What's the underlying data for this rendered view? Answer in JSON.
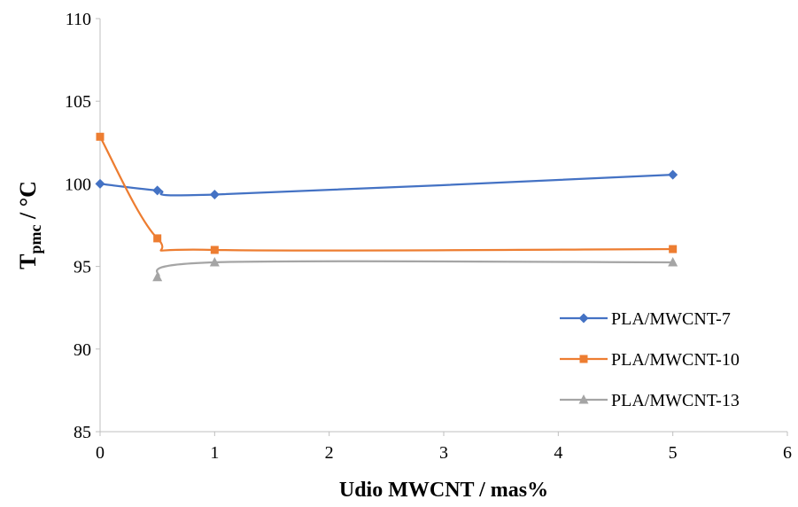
{
  "chart_data": {
    "type": "line",
    "title": "",
    "xlabel": "Udio MWCNT / mas%",
    "ylabel_main": "T",
    "ylabel_sub": "pmc",
    "ylabel_unit": " / °C",
    "xlim": [
      0,
      6
    ],
    "ylim": [
      85,
      110
    ],
    "x_ticks": [
      "0",
      "1",
      "2",
      "3",
      "4",
      "5",
      "6"
    ],
    "y_ticks": [
      "85",
      "90",
      "95",
      "100",
      "105",
      "110"
    ],
    "grid": false,
    "legend_position": "right",
    "smooth": true,
    "series": [
      {
        "name": "PLA/MWCNT-7",
        "color": "#4472C4",
        "marker": "diamond",
        "x": [
          0,
          0.5,
          1,
          5
        ],
        "y": [
          100.0,
          99.6,
          99.35,
          100.55
        ]
      },
      {
        "name": "PLA/MWCNT-10",
        "color": "#ED7D31",
        "marker": "square",
        "x": [
          0,
          0.5,
          1,
          5
        ],
        "y": [
          102.85,
          96.7,
          96.0,
          96.05
        ]
      },
      {
        "name": "PLA/MWCNT-13",
        "color": "#A5A5A5",
        "marker": "triangle",
        "x": [
          0.5,
          1,
          5
        ],
        "y": [
          94.35,
          95.25,
          95.25
        ]
      }
    ]
  }
}
